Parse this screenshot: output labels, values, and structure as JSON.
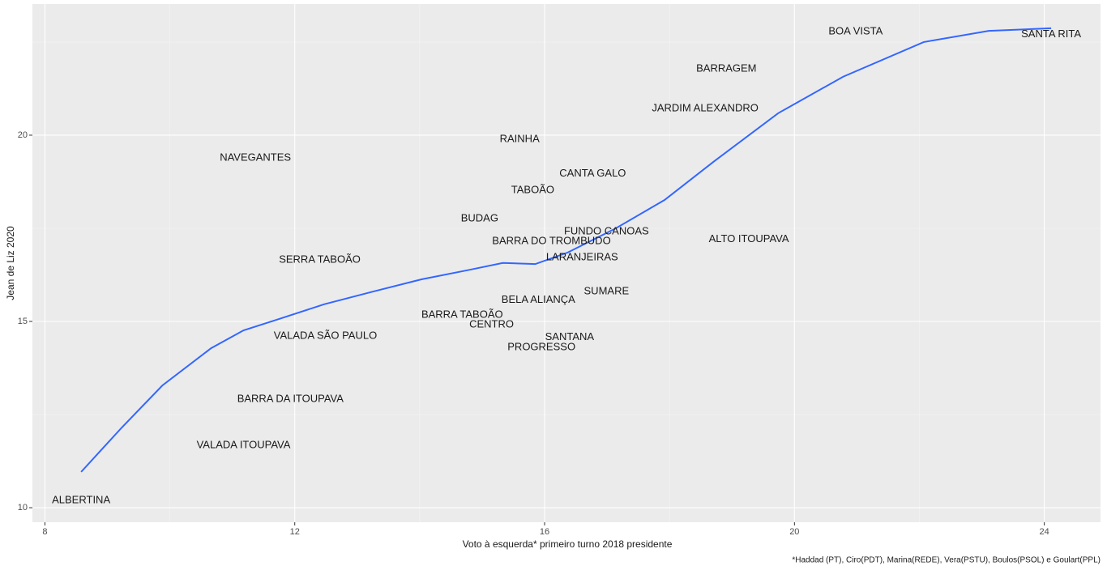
{
  "chart_data": {
    "type": "text-scatter",
    "x_label": "Voto à esquerda* primeiro turno 2018 presidente",
    "y_label": "Jean de Liz 2020",
    "caption": "*Haddad (PT), Ciro(PDT), Marina(REDE), Vera(PSTU), Boulos(PSOL) e Goulart(PPL)",
    "labels": [
      "ALBERTINA",
      "VALADA ITOUPAVA",
      "BARRA DA ITOUPAVA",
      "VALADA SÃO PAULO",
      "SERRA TABOÃO",
      "NAVEGANTES",
      "BUDAG",
      "RAINHA",
      "TABOÃO",
      "CANTA GALO",
      "FUNDO CANOAS",
      "BARRA DO TROMBUDO",
      "LARANJEIRAS",
      "ALTO ITOUPAVA",
      "SUMARE",
      "BELA ALIANÇA",
      "BARRA TABOÃO",
      "CENTRO",
      "SANTANA",
      "PROGRESSO",
      "JARDIM ALEXANDRO",
      "BARRAGEM",
      "BOA VISTA",
      "SANTA RITA"
    ],
    "x": [
      8.58,
      11.18,
      11.93,
      12.49,
      12.4,
      11.37,
      14.96,
      15.6,
      15.81,
      16.77,
      16.99,
      16.11,
      16.6,
      19.27,
      16.99,
      15.9,
      14.68,
      15.15,
      16.4,
      15.95,
      18.57,
      18.91,
      20.98,
      24.11
    ],
    "values": [
      10.2,
      11.67,
      12.91,
      14.61,
      16.65,
      19.39,
      17.76,
      19.89,
      18.52,
      18.96,
      17.41,
      17.15,
      16.72,
      17.2,
      15.8,
      15.57,
      15.17,
      14.91,
      14.57,
      14.3,
      20.72,
      21.78,
      22.78,
      22.7
    ],
    "smooth": {
      "color": "#3366ff",
      "x": [
        8.58,
        9.23,
        9.88,
        10.66,
        11.18,
        11.7,
        12.47,
        13.25,
        14.03,
        14.81,
        15.33,
        15.85,
        16.37,
        17.14,
        17.92,
        18.7,
        19.74,
        20.78,
        22.07,
        23.11,
        24.11
      ],
      "values": [
        10.96,
        12.15,
        13.28,
        14.28,
        14.76,
        15.04,
        15.46,
        15.8,
        16.13,
        16.39,
        16.57,
        16.54,
        16.85,
        17.5,
        18.26,
        19.28,
        20.59,
        21.57,
        22.5,
        22.8,
        22.87
      ]
    },
    "xlim": [
      7.8,
      24.9
    ],
    "ylim": [
      9.61,
      23.52
    ],
    "xticks": [
      8,
      12,
      16,
      20,
      24
    ],
    "yticks": [
      10,
      15,
      20
    ],
    "grid": true
  }
}
